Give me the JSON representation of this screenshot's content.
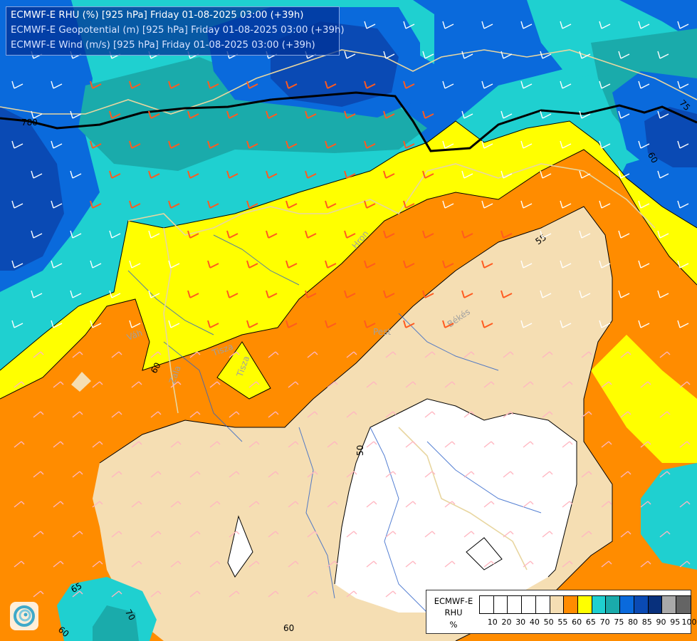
{
  "title": {
    "rhu": "ECMWF-E RHU (%) [925 hPa] Friday 01-08-2025 03:00 (+39h)",
    "geopotential": "ECMWF-E Geopotential (m) [925 hPa] Friday 01-08-2025 03:00 (+39h)",
    "wind": "ECMWF-E Wind (m/s) [925 hPa] Friday 01-08-2025 03:00 (+39h)"
  },
  "legend": {
    "model": "ECMWF-E",
    "variable": "RHU",
    "unit": "%",
    "ticks": [
      "10",
      "20",
      "30",
      "40",
      "50",
      "55",
      "60",
      "65",
      "70",
      "75",
      "80",
      "85",
      "90",
      "95",
      "100"
    ],
    "colors": [
      "#ffffff",
      "#ffffff",
      "#ffffff",
      "#ffffff",
      "#ffffff",
      "#f5deb3",
      "#ff8c00",
      "#ffff00",
      "#1fd0d0",
      "#1aabab",
      "#0a6adc",
      "#0a4ab4",
      "#08307c",
      "#a9a9a9",
      "#646464"
    ]
  },
  "contour_labels": {
    "geopotential_780": "780",
    "rhu": [
      "60",
      "60",
      "75",
      "55",
      "50",
      "60",
      "65",
      "70",
      "60"
    ]
  },
  "place_labels": [
    "Váh",
    "Hron",
    "Zala",
    "Tisza",
    "Tisza",
    "Pest",
    "Békés"
  ],
  "colors": {
    "white_band": "#ffffff",
    "rhu_55": "#f5deb3",
    "rhu_60": "#ff8c00",
    "rhu_65": "#ffff00",
    "rhu_70": "#1fd0d0",
    "rhu_75": "#1aabab",
    "rhu_80": "#0a6adc",
    "rhu_85": "#0a4ab4",
    "rhu_90": "#08307c",
    "wind_barb_strong": "#ff5a1f",
    "wind_barb_weak": "#ffffff",
    "wind_barb_calm": "#ffb6c1",
    "rivers": "#2a60c8",
    "borders": "#e8d6a0"
  },
  "icons": {
    "logo": "ecmwf-swirl-logo-icon"
  }
}
